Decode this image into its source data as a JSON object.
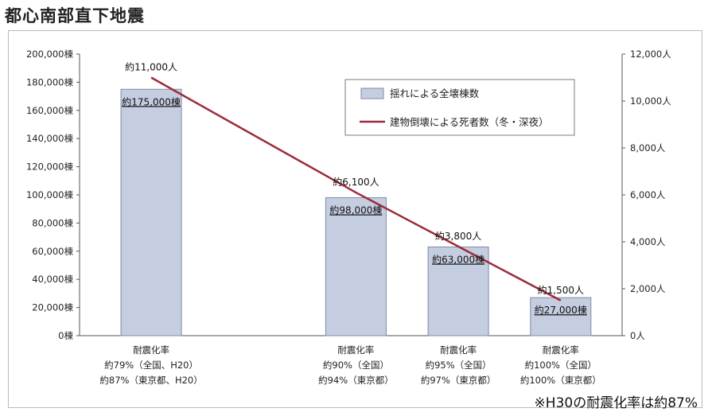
{
  "title": "都心南部直下地震",
  "footnote": "※H30の耐震化率は約87%",
  "colors": {
    "bar_fill": "#c5cde0",
    "bar_stroke": "#7f8aa6",
    "line": "#9c2b3a",
    "axis": "#555555"
  },
  "chart_data": {
    "type": "bar+line",
    "categories": [
      [
        "耐震化率",
        "約79%（全国、H20）",
        "約87%（東京都、H20）"
      ],
      [
        "耐震化率",
        "約90%（全国）",
        "約94%（東京都）"
      ],
      [
        "耐震化率",
        "約95%（全国）",
        "約97%（東京都）"
      ],
      [
        "耐震化率",
        "約100%（全国）",
        "約100%（東京都）"
      ]
    ],
    "x_positions": [
      1,
      3,
      4,
      5
    ],
    "xlim": [
      0.3,
      5.6
    ],
    "series": [
      {
        "name": "揺れによる全壊棟数",
        "type": "bar",
        "axis": "left",
        "values": [
          175000,
          98000,
          63000,
          27000
        ],
        "labels": [
          "約175,000棟",
          "約98,000棟",
          "約63,000棟",
          "約27,000棟"
        ]
      },
      {
        "name": "建物倒壊による死者数（冬・深夜）",
        "type": "line",
        "axis": "right",
        "values": [
          11000,
          6100,
          3800,
          1500
        ],
        "labels": [
          "約11,000人",
          "約6,100人",
          "約3,800人",
          "約1,500人"
        ]
      }
    ],
    "y_left": {
      "lim": [
        0,
        200000
      ],
      "ticks": [
        "0棟",
        "20,000棟",
        "40,000棟",
        "60,000棟",
        "80,000棟",
        "100,000棟",
        "120,000棟",
        "140,000棟",
        "160,000棟",
        "180,000棟",
        "200,000棟"
      ]
    },
    "y_right": {
      "lim": [
        0,
        12000
      ],
      "ticks": [
        "0人",
        "2,000人",
        "4,000人",
        "6,000人",
        "8,000人",
        "10,000人",
        "12,000人"
      ]
    },
    "legend": "top-right",
    "grid": false
  }
}
